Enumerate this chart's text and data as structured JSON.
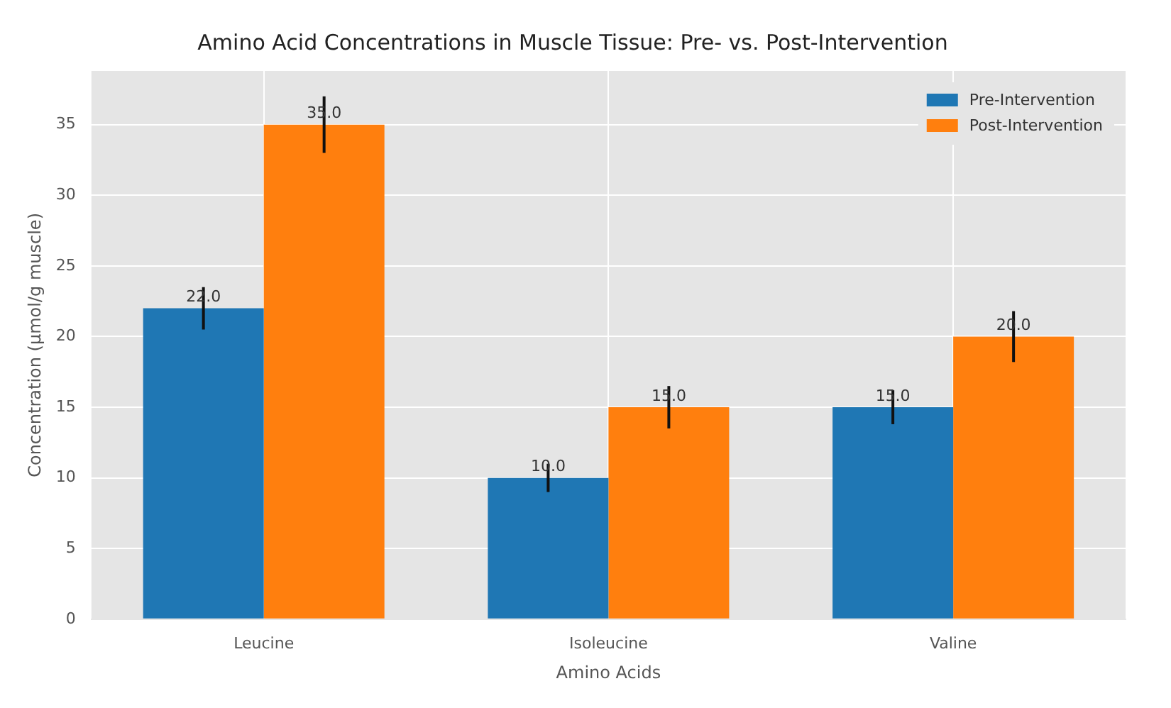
{
  "chart_data": {
    "type": "bar",
    "title": "Amino Acid Concentrations in Muscle Tissue: Pre- vs. Post-Intervention",
    "xlabel": "Amino Acids",
    "ylabel": "Concentration (µmol/g muscle)",
    "categories": [
      "Leucine",
      "Isoleucine",
      "Valine"
    ],
    "series": [
      {
        "name": "Pre-Intervention",
        "color": "#1f77b4",
        "values": [
          22,
          10,
          15
        ],
        "errors": [
          1.5,
          1,
          1.2
        ],
        "value_labels": [
          "22.0",
          "10.0",
          "15.0"
        ]
      },
      {
        "name": "Post-Intervention",
        "color": "#ff7f0e",
        "values": [
          35,
          15,
          20
        ],
        "errors": [
          2,
          1.5,
          1.8
        ],
        "value_labels": [
          "35.0",
          "15.0",
          "20.0"
        ]
      }
    ],
    "ylim": [
      0,
      38.8
    ],
    "yticks": [
      0,
      5,
      10,
      15,
      20,
      25,
      30,
      35
    ],
    "grid": true,
    "legend": "top right"
  }
}
